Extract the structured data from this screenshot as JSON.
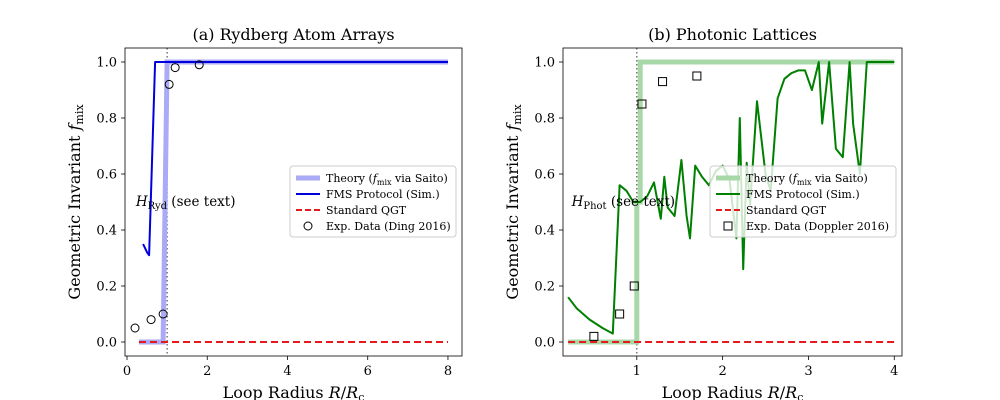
{
  "chart_data": [
    {
      "type": "line",
      "title": "(a) Rydberg Atom Arrays",
      "xlabel": "Loop Radius R/R_c",
      "ylabel": "Geometric Invariant f_mix",
      "xlim": [
        -0.05,
        8.35
      ],
      "ylim": [
        -0.05,
        1.05
      ],
      "xticks": [
        0,
        2,
        4,
        6,
        8
      ],
      "yticks": [
        0.0,
        0.2,
        0.4,
        0.6,
        0.8,
        1.0
      ],
      "critical_line": 1.0,
      "annotation": {
        "label": "H_Ryd (see text)",
        "x": 0.22,
        "y": 0.5
      },
      "legend": [
        "Theory (f_mix via Saito)",
        "FMS Protocol (Sim.)",
        "Standard QGT",
        "Exp. Data (Ding 2016)"
      ],
      "series": [
        {
          "name": "Theory (f_mix via Saito)",
          "color": "#aaaaf7",
          "x": [
            0.3,
            0.9,
            0.9,
            1.0,
            1.0,
            8.0
          ],
          "y": [
            0,
            0,
            0,
            1,
            1,
            1
          ]
        },
        {
          "name": "FMS Protocol (Sim.)",
          "color": "#0000dd",
          "x": [
            0.4,
            0.5,
            0.55,
            0.7,
            8.0
          ],
          "y": [
            0.35,
            0.32,
            0.31,
            1.0,
            1.0
          ]
        },
        {
          "name": "Standard QGT",
          "color": "#e41a1c",
          "x": [
            0.3,
            8.0
          ],
          "y": [
            0,
            0
          ]
        },
        {
          "name": "Exp. Data (Ding 2016)",
          "color": "#000000",
          "marker": "circle",
          "x": [
            0.2,
            0.6,
            0.9,
            1.05,
            1.2,
            1.8
          ],
          "y": [
            0.05,
            0.08,
            0.1,
            0.92,
            0.98,
            0.99
          ]
        }
      ]
    },
    {
      "type": "line",
      "title": "(b) Photonic Lattices",
      "xlabel": "Loop Radius R/R_c",
      "ylabel": "Geometric Invariant f_mix",
      "xlim": [
        0.14,
        4.09
      ],
      "ylim": [
        -0.05,
        1.05
      ],
      "xticks": [
        1,
        2,
        3,
        4
      ],
      "yticks": [
        0.0,
        0.2,
        0.4,
        0.6,
        0.8,
        1.0
      ],
      "critical_line": 1.0,
      "annotation": {
        "label": "H_Phot (see text)",
        "x": 0.24,
        "y": 0.5
      },
      "legend": [
        "Theory (f_mix via Saito)",
        "FMS Protocol (Sim.)",
        "Standard QGT",
        "Exp. Data (Doppler 2016)"
      ],
      "series": [
        {
          "name": "Theory (f_mix via Saito)",
          "color": "#a8d8a8",
          "x": [
            0.2,
            1.0,
            1.0,
            1.04,
            1.04,
            4.0
          ],
          "y": [
            0,
            0,
            0.5,
            0.5,
            1,
            1
          ]
        },
        {
          "name": "FMS Protocol (Sim.)",
          "color": "#008000",
          "x": [
            0.2,
            0.3,
            0.45,
            0.6,
            0.72,
            0.8,
            0.88,
            0.92,
            0.96,
            1.04,
            1.12,
            1.2,
            1.28,
            1.32,
            1.36,
            1.44,
            1.52,
            1.58,
            1.62,
            1.68,
            1.76,
            1.84,
            1.92,
            2.0,
            2.08,
            2.16,
            2.2,
            2.24,
            2.28,
            2.32,
            2.4,
            2.5,
            2.56,
            2.64,
            2.72,
            2.8,
            2.88,
            2.96,
            3.04,
            3.12,
            3.16,
            3.24,
            3.32,
            3.4,
            3.48,
            3.52,
            3.6,
            3.68,
            3.76,
            3.84,
            3.92,
            4.0
          ],
          "y": [
            0.16,
            0.12,
            0.08,
            0.05,
            0.03,
            0.56,
            0.54,
            0.52,
            0.5,
            0.5,
            0.52,
            0.57,
            0.44,
            0.59,
            0.48,
            0.45,
            0.65,
            0.45,
            0.37,
            0.63,
            0.59,
            0.56,
            0.61,
            0.63,
            0.58,
            0.37,
            0.8,
            0.26,
            0.64,
            0.49,
            0.86,
            0.6,
            0.54,
            0.87,
            0.94,
            0.96,
            0.97,
            0.97,
            0.9,
            1.0,
            0.78,
            1.0,
            0.69,
            0.66,
            1.0,
            0.78,
            0.6,
            1.0,
            1.0,
            1.0,
            1.0,
            1.0
          ]
        },
        {
          "name": "Standard QGT",
          "color": "#e41a1c",
          "x": [
            0.2,
            4.0
          ],
          "y": [
            0,
            0
          ]
        },
        {
          "name": "Exp. Data (Doppler 2016)",
          "color": "#000000",
          "marker": "square",
          "x": [
            0.5,
            0.8,
            0.97,
            1.06,
            1.3,
            1.7
          ],
          "y": [
            0.02,
            0.1,
            0.2,
            0.85,
            0.93,
            0.95
          ]
        }
      ]
    }
  ]
}
